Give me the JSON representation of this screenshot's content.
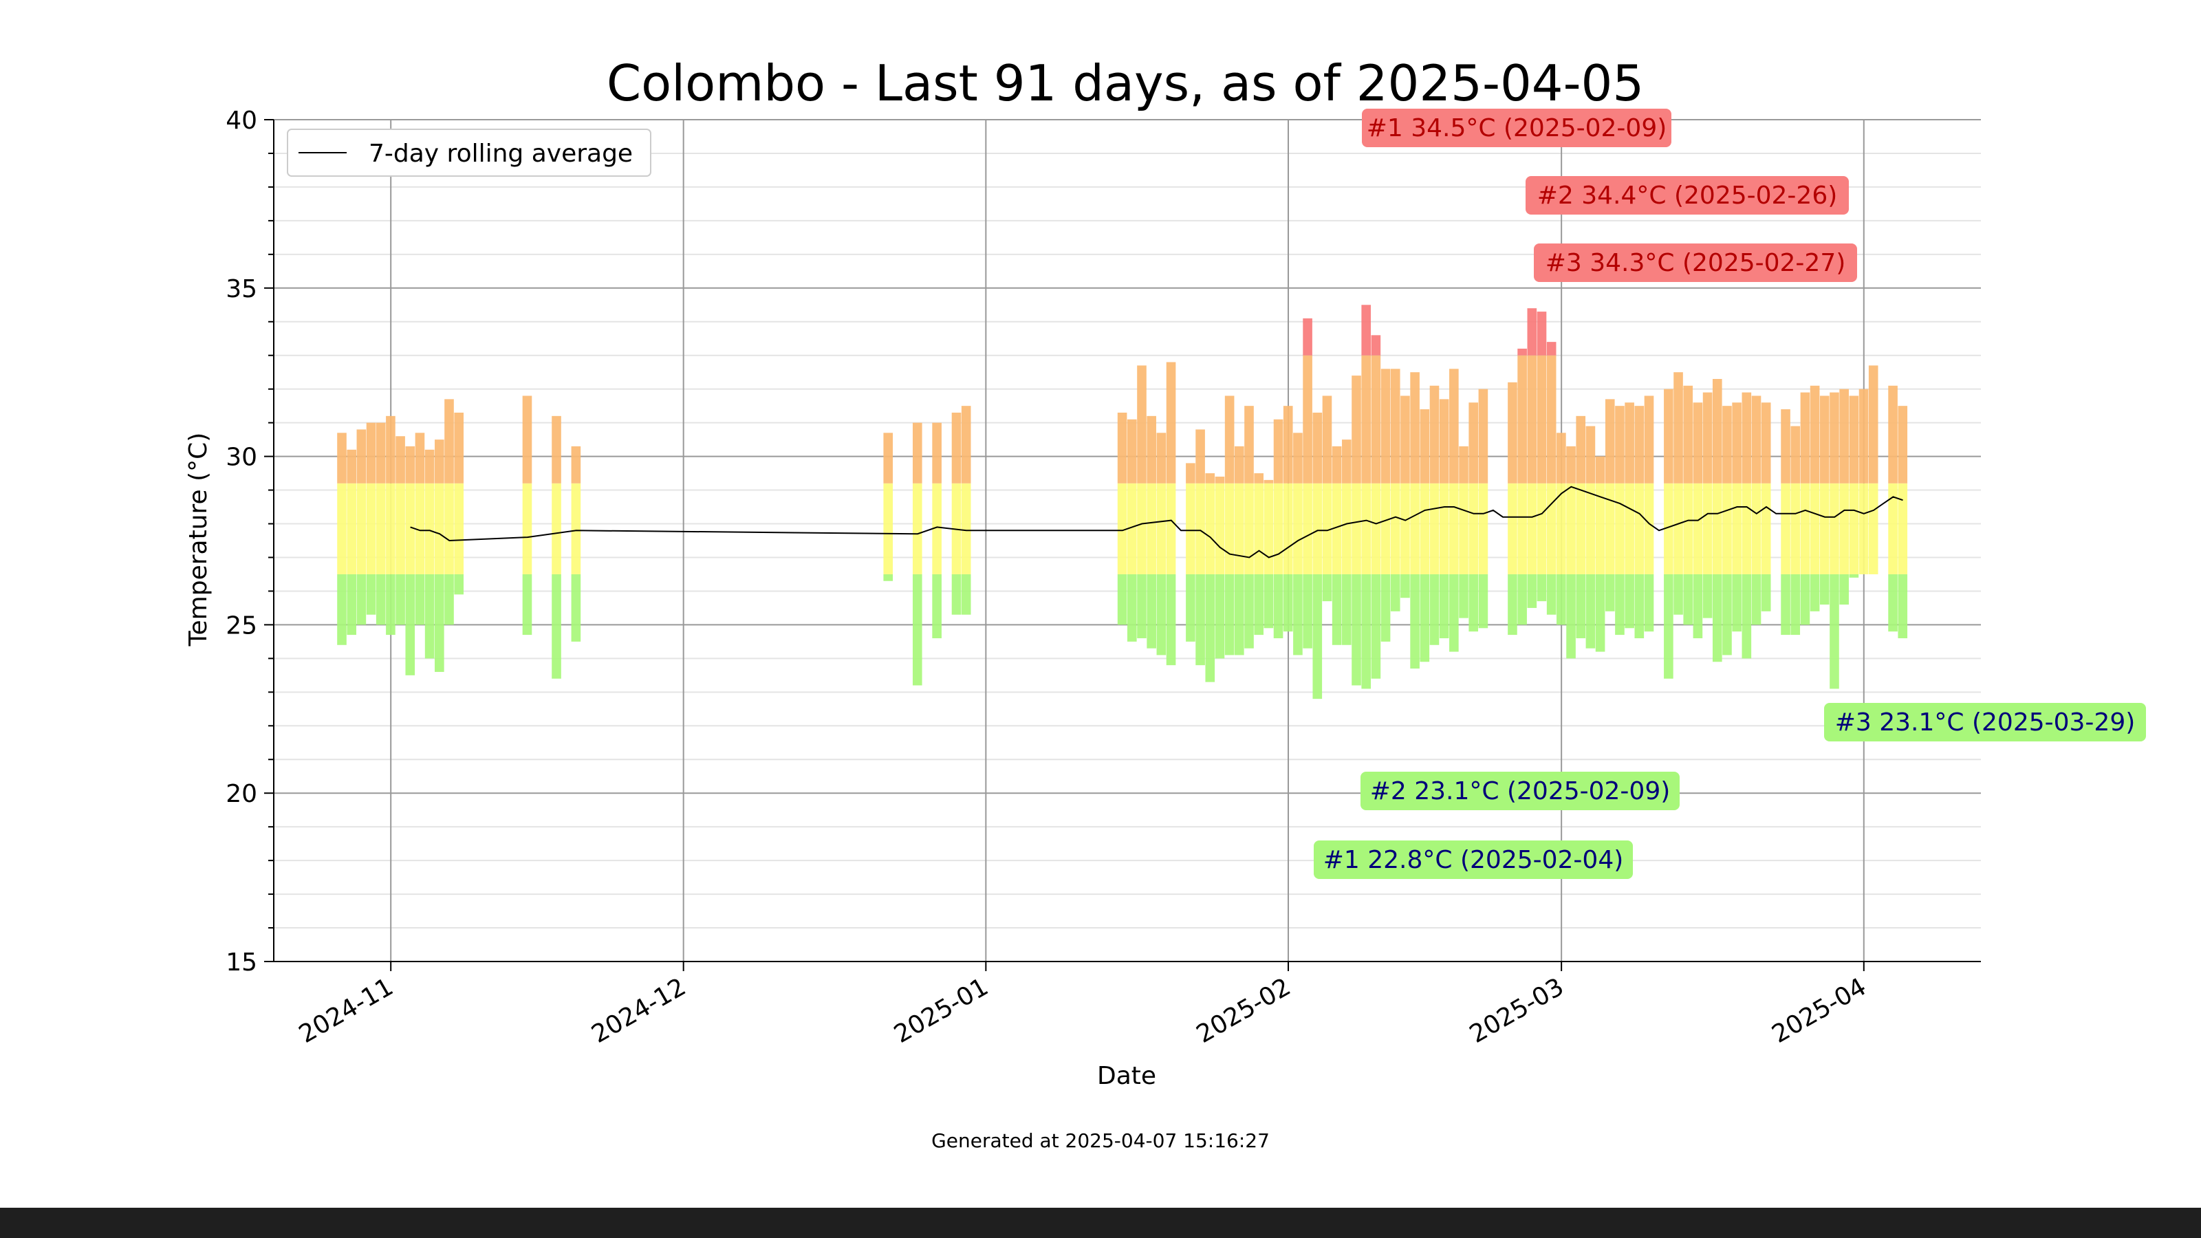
{
  "chart_data": {
    "type": "bar",
    "title": "Colombo - Last 91 days, as of 2025-04-05",
    "xlabel": "Date",
    "ylabel": "Temperature (°C)",
    "ylim": [
      15,
      40
    ],
    "xlim": [
      "2024-10-20",
      "2025-04-13"
    ],
    "yticks": [
      "15",
      "20",
      "25",
      "30",
      "35",
      "40"
    ],
    "xticks": [
      {
        "date": "2024-11-01",
        "label": "2024-11"
      },
      {
        "date": "2024-12-01",
        "label": "2024-12"
      },
      {
        "date": "2025-01-01",
        "label": "2025-01"
      },
      {
        "date": "2025-02-01",
        "label": "2025-02"
      },
      {
        "date": "2025-03-01",
        "label": "2025-03"
      },
      {
        "date": "2025-04-01",
        "label": "2025-04"
      }
    ],
    "grid": true,
    "legend": {
      "position": "top-left",
      "entries": [
        "7-day rolling average"
      ]
    },
    "footnote": "Generated at 2025-04-07 15:16:27",
    "colors": {
      "cool": "#a8f77a",
      "mild": "#fdfc7a",
      "warm": "#fbb871",
      "hot": "#f87a7a",
      "max_label_bg": "#f88080",
      "max_label_text": "#b30000",
      "min_label_bg": "#a8f77a",
      "min_label_text": "#00007a",
      "avg_line": "#000000"
    },
    "bars": [
      {
        "date": "2024-10-27",
        "min": 24.4,
        "max": 30.7
      },
      {
        "date": "2024-10-28",
        "min": 24.7,
        "max": 30.2
      },
      {
        "date": "2024-10-29",
        "min": 25.0,
        "max": 30.8
      },
      {
        "date": "2024-10-30",
        "min": 25.3,
        "max": 31.0
      },
      {
        "date": "2024-10-31",
        "min": 25.0,
        "max": 31.0
      },
      {
        "date": "2024-11-01",
        "min": 24.7,
        "max": 31.2
      },
      {
        "date": "2024-11-02",
        "min": 25.0,
        "max": 30.6
      },
      {
        "date": "2024-11-03",
        "min": 23.5,
        "max": 30.3
      },
      {
        "date": "2024-11-04",
        "min": 25.0,
        "max": 30.7
      },
      {
        "date": "2024-11-05",
        "min": 24.0,
        "max": 30.2
      },
      {
        "date": "2024-11-06",
        "min": 23.6,
        "max": 30.5
      },
      {
        "date": "2024-11-07",
        "min": 25.0,
        "max": 31.7
      },
      {
        "date": "2024-11-08",
        "min": 25.9,
        "max": 31.3
      },
      {
        "date": "2024-11-15",
        "min": 24.7,
        "max": 31.8
      },
      {
        "date": "2024-11-18",
        "min": 23.4,
        "max": 31.2
      },
      {
        "date": "2024-11-20",
        "min": 24.5,
        "max": 30.3
      },
      {
        "date": "2024-12-22",
        "min": 26.3,
        "max": 30.7
      },
      {
        "date": "2024-12-25",
        "min": 23.2,
        "max": 31.0
      },
      {
        "date": "2024-12-27",
        "min": 24.6,
        "max": 31.0
      },
      {
        "date": "2024-12-29",
        "min": 25.3,
        "max": 31.3
      },
      {
        "date": "2024-12-30",
        "min": 25.3,
        "max": 31.5
      },
      {
        "date": "2025-01-15",
        "min": 25.0,
        "max": 31.3
      },
      {
        "date": "2025-01-16",
        "min": 24.5,
        "max": 31.1
      },
      {
        "date": "2025-01-17",
        "min": 24.6,
        "max": 32.7
      },
      {
        "date": "2025-01-18",
        "min": 24.3,
        "max": 31.2
      },
      {
        "date": "2025-01-19",
        "min": 24.1,
        "max": 30.7
      },
      {
        "date": "2025-01-20",
        "min": 23.8,
        "max": 32.8
      },
      {
        "date": "2025-01-22",
        "min": 24.5,
        "max": 29.8
      },
      {
        "date": "2025-01-23",
        "min": 23.8,
        "max": 30.8
      },
      {
        "date": "2025-01-24",
        "min": 23.3,
        "max": 29.5
      },
      {
        "date": "2025-01-25",
        "min": 24.0,
        "max": 29.4
      },
      {
        "date": "2025-01-26",
        "min": 24.1,
        "max": 31.8
      },
      {
        "date": "2025-01-27",
        "min": 24.1,
        "max": 30.3
      },
      {
        "date": "2025-01-28",
        "min": 24.3,
        "max": 31.5
      },
      {
        "date": "2025-01-29",
        "min": 24.7,
        "max": 29.5
      },
      {
        "date": "2025-01-30",
        "min": 24.9,
        "max": 29.3
      },
      {
        "date": "2025-01-31",
        "min": 24.6,
        "max": 31.1
      },
      {
        "date": "2025-02-01",
        "min": 24.8,
        "max": 31.5
      },
      {
        "date": "2025-02-02",
        "min": 24.1,
        "max": 30.7
      },
      {
        "date": "2025-02-03",
        "min": 24.3,
        "max": 34.1
      },
      {
        "date": "2025-02-04",
        "min": 22.8,
        "max": 31.3
      },
      {
        "date": "2025-02-05",
        "min": 25.7,
        "max": 31.8
      },
      {
        "date": "2025-02-06",
        "min": 24.4,
        "max": 30.3
      },
      {
        "date": "2025-02-07",
        "min": 24.4,
        "max": 30.5
      },
      {
        "date": "2025-02-08",
        "min": 23.2,
        "max": 32.4
      },
      {
        "date": "2025-02-09",
        "min": 23.1,
        "max": 34.5
      },
      {
        "date": "2025-02-10",
        "min": 23.4,
        "max": 33.6
      },
      {
        "date": "2025-02-11",
        "min": 24.5,
        "max": 32.6
      },
      {
        "date": "2025-02-12",
        "min": 25.4,
        "max": 32.6
      },
      {
        "date": "2025-02-13",
        "min": 25.8,
        "max": 31.8
      },
      {
        "date": "2025-02-14",
        "min": 23.7,
        "max": 32.5
      },
      {
        "date": "2025-02-15",
        "min": 23.9,
        "max": 31.4
      },
      {
        "date": "2025-02-16",
        "min": 24.4,
        "max": 32.1
      },
      {
        "date": "2025-02-17",
        "min": 24.6,
        "max": 31.7
      },
      {
        "date": "2025-02-18",
        "min": 24.2,
        "max": 32.6
      },
      {
        "date": "2025-02-19",
        "min": 25.2,
        "max": 30.3
      },
      {
        "date": "2025-02-20",
        "min": 24.8,
        "max": 31.6
      },
      {
        "date": "2025-02-21",
        "min": 24.9,
        "max": 32.0
      },
      {
        "date": "2025-02-24",
        "min": 24.7,
        "max": 32.2
      },
      {
        "date": "2025-02-25",
        "min": 25.0,
        "max": 33.2
      },
      {
        "date": "2025-02-26",
        "min": 25.5,
        "max": 34.4
      },
      {
        "date": "2025-02-27",
        "min": 25.7,
        "max": 34.3
      },
      {
        "date": "2025-02-28",
        "min": 25.3,
        "max": 33.4
      },
      {
        "date": "2025-03-01",
        "min": 25.0,
        "max": 30.7
      },
      {
        "date": "2025-03-02",
        "min": 24.0,
        "max": 30.3
      },
      {
        "date": "2025-03-03",
        "min": 24.6,
        "max": 31.2
      },
      {
        "date": "2025-03-04",
        "min": 24.3,
        "max": 30.9
      },
      {
        "date": "2025-03-05",
        "min": 24.2,
        "max": 30.0
      },
      {
        "date": "2025-03-06",
        "min": 25.4,
        "max": 31.7
      },
      {
        "date": "2025-03-07",
        "min": 24.7,
        "max": 31.5
      },
      {
        "date": "2025-03-08",
        "min": 24.9,
        "max": 31.6
      },
      {
        "date": "2025-03-09",
        "min": 24.6,
        "max": 31.5
      },
      {
        "date": "2025-03-10",
        "min": 24.8,
        "max": 31.8
      },
      {
        "date": "2025-03-12",
        "min": 23.4,
        "max": 32.0
      },
      {
        "date": "2025-03-13",
        "min": 25.3,
        "max": 32.5
      },
      {
        "date": "2025-03-14",
        "min": 25.0,
        "max": 32.1
      },
      {
        "date": "2025-03-15",
        "min": 24.6,
        "max": 31.6
      },
      {
        "date": "2025-03-16",
        "min": 25.2,
        "max": 31.9
      },
      {
        "date": "2025-03-17",
        "min": 23.9,
        "max": 32.3
      },
      {
        "date": "2025-03-18",
        "min": 24.1,
        "max": 31.5
      },
      {
        "date": "2025-03-19",
        "min": 24.8,
        "max": 31.6
      },
      {
        "date": "2025-03-20",
        "min": 24.0,
        "max": 31.9
      },
      {
        "date": "2025-03-21",
        "min": 25.0,
        "max": 31.8
      },
      {
        "date": "2025-03-22",
        "min": 25.4,
        "max": 31.6
      },
      {
        "date": "2025-03-24",
        "min": 24.7,
        "max": 31.4
      },
      {
        "date": "2025-03-25",
        "min": 24.7,
        "max": 30.9
      },
      {
        "date": "2025-03-26",
        "min": 25.0,
        "max": 31.9
      },
      {
        "date": "2025-03-27",
        "min": 25.4,
        "max": 32.1
      },
      {
        "date": "2025-03-28",
        "min": 25.6,
        "max": 31.8
      },
      {
        "date": "2025-03-29",
        "min": 23.1,
        "max": 31.9
      },
      {
        "date": "2025-03-30",
        "min": 25.6,
        "max": 32.0
      },
      {
        "date": "2025-03-31",
        "min": 26.4,
        "max": 31.8
      },
      {
        "date": "2025-04-01",
        "min": 26.5,
        "max": 32.0
      },
      {
        "date": "2025-04-02",
        "min": 26.5,
        "max": 32.7
      },
      {
        "date": "2025-04-04",
        "min": 24.8,
        "max": 32.1
      },
      {
        "date": "2025-04-05",
        "min": 24.6,
        "max": 31.5
      }
    ],
    "rolling_average": [
      {
        "date": "2024-11-03",
        "value": 27.9
      },
      {
        "date": "2024-11-04",
        "value": 27.8
      },
      {
        "date": "2024-11-05",
        "value": 27.8
      },
      {
        "date": "2024-11-06",
        "value": 27.7
      },
      {
        "date": "2024-11-07",
        "value": 27.5
      },
      {
        "date": "2024-11-15",
        "value": 27.6
      },
      {
        "date": "2024-11-20",
        "value": 27.8
      },
      {
        "date": "2024-12-25",
        "value": 27.7
      },
      {
        "date": "2024-12-27",
        "value": 27.9
      },
      {
        "date": "2024-12-30",
        "value": 27.8
      },
      {
        "date": "2025-01-15",
        "value": 27.8
      },
      {
        "date": "2025-01-17",
        "value": 28.0
      },
      {
        "date": "2025-01-20",
        "value": 28.1
      },
      {
        "date": "2025-01-21",
        "value": 27.8
      },
      {
        "date": "2025-01-23",
        "value": 27.8
      },
      {
        "date": "2025-01-24",
        "value": 27.6
      },
      {
        "date": "2025-01-25",
        "value": 27.3
      },
      {
        "date": "2025-01-26",
        "value": 27.1
      },
      {
        "date": "2025-01-28",
        "value": 27.0
      },
      {
        "date": "2025-01-29",
        "value": 27.2
      },
      {
        "date": "2025-01-30",
        "value": 27.0
      },
      {
        "date": "2025-01-31",
        "value": 27.1
      },
      {
        "date": "2025-02-02",
        "value": 27.5
      },
      {
        "date": "2025-02-04",
        "value": 27.8
      },
      {
        "date": "2025-02-05",
        "value": 27.8
      },
      {
        "date": "2025-02-07",
        "value": 28.0
      },
      {
        "date": "2025-02-09",
        "value": 28.1
      },
      {
        "date": "2025-02-10",
        "value": 28.0
      },
      {
        "date": "2025-02-12",
        "value": 28.2
      },
      {
        "date": "2025-02-13",
        "value": 28.1
      },
      {
        "date": "2025-02-15",
        "value": 28.4
      },
      {
        "date": "2025-02-17",
        "value": 28.5
      },
      {
        "date": "2025-02-18",
        "value": 28.5
      },
      {
        "date": "2025-02-20",
        "value": 28.3
      },
      {
        "date": "2025-02-21",
        "value": 28.3
      },
      {
        "date": "2025-02-22",
        "value": 28.4
      },
      {
        "date": "2025-02-23",
        "value": 28.2
      },
      {
        "date": "2025-02-24",
        "value": 28.2
      },
      {
        "date": "2025-02-26",
        "value": 28.2
      },
      {
        "date": "2025-02-27",
        "value": 28.3
      },
      {
        "date": "2025-02-28",
        "value": 28.6
      },
      {
        "date": "2025-03-01",
        "value": 28.9
      },
      {
        "date": "2025-03-02",
        "value": 29.1
      },
      {
        "date": "2025-03-03",
        "value": 29.0
      },
      {
        "date": "2025-03-05",
        "value": 28.8
      },
      {
        "date": "2025-03-07",
        "value": 28.6
      },
      {
        "date": "2025-03-09",
        "value": 28.3
      },
      {
        "date": "2025-03-10",
        "value": 28.0
      },
      {
        "date": "2025-03-11",
        "value": 27.8
      },
      {
        "date": "2025-03-12",
        "value": 27.9
      },
      {
        "date": "2025-03-13",
        "value": 28.0
      },
      {
        "date": "2025-03-14",
        "value": 28.1
      },
      {
        "date": "2025-03-15",
        "value": 28.1
      },
      {
        "date": "2025-03-16",
        "value": 28.3
      },
      {
        "date": "2025-03-17",
        "value": 28.3
      },
      {
        "date": "2025-03-18",
        "value": 28.4
      },
      {
        "date": "2025-03-19",
        "value": 28.5
      },
      {
        "date": "2025-03-20",
        "value": 28.5
      },
      {
        "date": "2025-03-21",
        "value": 28.3
      },
      {
        "date": "2025-03-22",
        "value": 28.5
      },
      {
        "date": "2025-03-23",
        "value": 28.3
      },
      {
        "date": "2025-03-25",
        "value": 28.3
      },
      {
        "date": "2025-03-26",
        "value": 28.4
      },
      {
        "date": "2025-03-27",
        "value": 28.3
      },
      {
        "date": "2025-03-28",
        "value": 28.2
      },
      {
        "date": "2025-03-29",
        "value": 28.2
      },
      {
        "date": "2025-03-30",
        "value": 28.4
      },
      {
        "date": "2025-03-31",
        "value": 28.4
      },
      {
        "date": "2025-04-01",
        "value": 28.3
      },
      {
        "date": "2025-04-02",
        "value": 28.4
      },
      {
        "date": "2025-04-03",
        "value": 28.6
      },
      {
        "date": "2025-04-04",
        "value": 28.8
      },
      {
        "date": "2025-04-05",
        "value": 28.7
      }
    ],
    "annotations": {
      "max": [
        {
          "text": "#1 34.5°C (2025-02-09)"
        },
        {
          "text": "#2 34.4°C (2025-02-26)"
        },
        {
          "text": "#3 34.3°C (2025-02-27)"
        }
      ],
      "min": [
        {
          "text": "#1 22.8°C (2025-02-04)"
        },
        {
          "text": "#2 23.1°C (2025-02-09)"
        },
        {
          "text": "#3 23.1°C (2025-03-29)"
        }
      ]
    }
  }
}
